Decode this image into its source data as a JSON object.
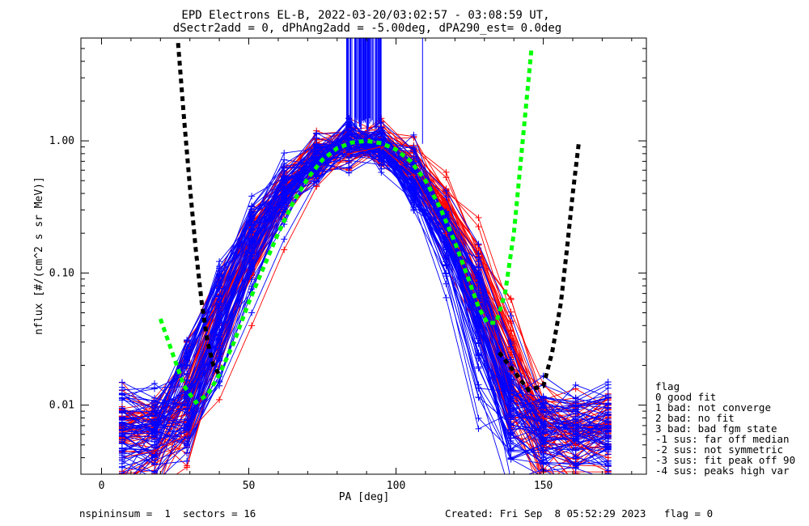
{
  "titles": {
    "line1": "EPD Electrons EL-B, 2022-03-20/03:02:57 - 03:08:59 UT,",
    "line2": "dSectr2add = 0, dPhAng2add = -5.00deg, dPA290_est=   0.0deg"
  },
  "footer": {
    "left": "nspininsum =  1  sectors = 16",
    "right": "Created: Fri Sep  8 05:52:29 2023   flag = 0"
  },
  "flag_legend": {
    "title": "flag",
    "items": [
      " 0 good fit",
      " 1 bad: not converge",
      " 2 bad: no fit",
      " 3 bad: bad fgm state",
      "-1 sus: far off median",
      "-2 sus: not symmetric",
      "-3 sus: fit peak off 90",
      "-4 sus: peaks high var"
    ]
  },
  "colors": {
    "red_series": "#ff0000",
    "blue_series": "#0000ff",
    "green_curve": "#00ff00",
    "black_curve": "#000000"
  },
  "chart_data": {
    "type": "line",
    "xlabel": "PA [deg]",
    "ylabel": "nflux [#/(cm^2 s sr MeV)]",
    "xlim": [
      -7,
      185
    ],
    "ylim": [
      0.003,
      6.0
    ],
    "yscale": "log",
    "xticks": [
      0,
      50,
      100,
      150
    ],
    "xtick_labels": [
      "0",
      "50",
      "100",
      "150"
    ],
    "yticks": [
      0.01,
      0.1,
      1.0
    ],
    "ytick_labels": [
      "0.01",
      "0.10",
      "1.00"
    ],
    "series": [
      {
        "color": "red",
        "role": "sample red trace",
        "x": [
          7,
          18,
          29,
          40,
          51,
          62,
          73,
          84,
          95,
          106,
          117,
          128,
          139,
          150,
          161,
          172
        ],
        "y": [
          0.004,
          0.0045,
          0.006,
          0.011,
          0.04,
          0.15,
          0.45,
          0.8,
          0.9,
          0.55,
          0.2,
          0.06,
          0.018,
          0.008,
          0.005,
          0.004
        ]
      },
      {
        "color": "blue",
        "role": "sample blue trace",
        "x": [
          7,
          18,
          29,
          40,
          51,
          62,
          73,
          84,
          95,
          106,
          117,
          128,
          139,
          150,
          161,
          172
        ],
        "y": [
          0.004,
          0.005,
          0.007,
          0.014,
          0.05,
          0.18,
          0.5,
          0.85,
          0.95,
          0.6,
          0.22,
          0.05,
          0.015,
          0.009,
          0.006,
          0.005
        ]
      },
      {
        "color": "green",
        "role": "dashed fit",
        "x": [
          20,
          24,
          28,
          32,
          36,
          40,
          45,
          50,
          55,
          60,
          65,
          70,
          75,
          80,
          85,
          90,
          95,
          100,
          105,
          110,
          115,
          120,
          125,
          128,
          131,
          134,
          137,
          140,
          143,
          146
        ],
        "y": [
          0.045,
          0.025,
          0.014,
          0.0105,
          0.012,
          0.017,
          0.03,
          0.06,
          0.11,
          0.2,
          0.34,
          0.52,
          0.72,
          0.88,
          0.97,
          1.0,
          0.96,
          0.86,
          0.7,
          0.5,
          0.31,
          0.17,
          0.085,
          0.055,
          0.042,
          0.042,
          0.07,
          0.2,
          1.0,
          5.0
        ]
      },
      {
        "color": "black",
        "role": "dashed curve",
        "x": [
          26,
          28,
          30,
          32,
          34,
          36,
          38,
          40,
          135,
          140,
          145,
          150,
          153,
          156,
          158,
          160,
          162
        ],
        "y": [
          5.5,
          1.5,
          0.45,
          0.15,
          0.06,
          0.03,
          0.02,
          0.017,
          0.025,
          0.018,
          0.013,
          0.014,
          0.025,
          0.06,
          0.15,
          0.4,
          0.95
        ]
      }
    ],
    "ensemble": {
      "red_traces": 60,
      "blue_traces": 70,
      "x_sectors": [
        7,
        18,
        29,
        40,
        51,
        62,
        73,
        84,
        95,
        106,
        117,
        128,
        139,
        150,
        161,
        172
      ]
    }
  }
}
